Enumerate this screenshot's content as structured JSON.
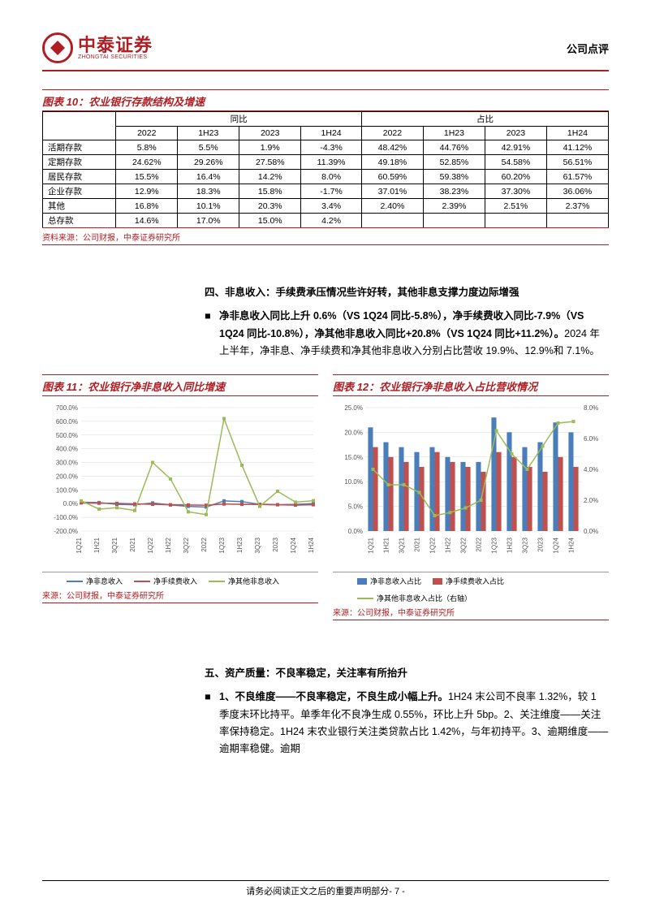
{
  "header": {
    "logo_cn": "中泰证券",
    "logo_en": "ZHONGTAI SECURITIES",
    "doc_type": "公司点评"
  },
  "table10": {
    "title": "图表 10：农业银行存款结构及增速",
    "group_headers": [
      "同比",
      "占比"
    ],
    "col_headers": [
      "2022",
      "1H23",
      "2023",
      "1H24",
      "2022",
      "1H23",
      "2023",
      "1H24"
    ],
    "rows": [
      {
        "label": "活期存款",
        "cells": [
          "5.8%",
          "5.5%",
          "1.9%",
          "-4.3%",
          "48.42%",
          "44.76%",
          "42.91%",
          "41.12%"
        ]
      },
      {
        "label": "定期存款",
        "cells": [
          "24.62%",
          "29.26%",
          "27.58%",
          "11.39%",
          "49.18%",
          "52.85%",
          "54.58%",
          "56.51%"
        ]
      },
      {
        "label": "居民存款",
        "cells": [
          "15.5%",
          "16.4%",
          "14.2%",
          "8.0%",
          "60.59%",
          "59.38%",
          "60.20%",
          "61.57%"
        ]
      },
      {
        "label": "企业存款",
        "cells": [
          "12.9%",
          "18.3%",
          "15.8%",
          "-1.7%",
          "37.01%",
          "38.23%",
          "37.30%",
          "36.06%"
        ]
      },
      {
        "label": "其他",
        "cells": [
          "16.8%",
          "10.1%",
          "20.3%",
          "3.4%",
          "2.40%",
          "2.39%",
          "2.51%",
          "2.37%"
        ]
      },
      {
        "label": "总存款",
        "cells": [
          "14.6%",
          "17.0%",
          "15.0%",
          "4.2%",
          "",
          "",
          "",
          ""
        ]
      }
    ],
    "source": "资料来源：公司财报，中泰证券研究所"
  },
  "section4": {
    "title": "四、非息收入：手续费承压情况些许好转，其他非息支撑力度边际增强",
    "bullet_bold": "净非息收入同比上升 0.6%（VS 1Q24 同比-5.8%），净手续费收入同比-7.9%（VS 1Q24 同比-10.8%），净其他非息收入同比+20.8%（VS 1Q24 同比+11.2%）。",
    "bullet_rest": "2024 年上半年，净非息、净手续费和净其他非息收入分别占比营收 19.9%、12.9%和 7.1%。"
  },
  "chart11": {
    "title": "图表 11：农业银行净非息收入同比增速",
    "type": "line",
    "ylim": [
      -200,
      700
    ],
    "ytick_step": 100,
    "yticks": [
      "-200.0%",
      "-100.0%",
      "0.0%",
      "100.0%",
      "200.0%",
      "300.0%",
      "400.0%",
      "500.0%",
      "600.0%",
      "700.0%"
    ],
    "categories": [
      "1Q21",
      "1H21",
      "3Q21",
      "2021",
      "1Q22",
      "1H22",
      "3Q22",
      "2022",
      "1Q23",
      "1H23",
      "3Q23",
      "2023",
      "1Q24",
      "1H24"
    ],
    "series": [
      {
        "name": "净非息收入",
        "color": "#4a7ebb",
        "values": [
          10,
          8,
          -5,
          -8,
          5,
          -10,
          -20,
          -25,
          20,
          15,
          -5,
          -8,
          -6,
          1
        ]
      },
      {
        "name": "净手续费收入",
        "color": "#c0504d",
        "values": [
          5,
          3,
          2,
          -2,
          -5,
          -8,
          -10,
          -12,
          -3,
          -5,
          -6,
          -8,
          -11,
          -8
        ]
      },
      {
        "name": "净其他非息收入",
        "color": "#9bbb59",
        "values": [
          20,
          -40,
          -30,
          -50,
          300,
          180,
          -60,
          -80,
          620,
          280,
          -20,
          90,
          11,
          21
        ]
      }
    ],
    "background_color": "#ffffff",
    "grid_color": "#d9d9d9",
    "source": "来源：公司财报，中泰证券研究所"
  },
  "chart12": {
    "title": "图表 12：农业银行净非息收入占比营收情况",
    "type": "bar+line",
    "ylim_left": [
      0,
      25
    ],
    "ytick_left": [
      "0.0%",
      "5.0%",
      "10.0%",
      "15.0%",
      "20.0%",
      "25.0%"
    ],
    "ylim_right": [
      0,
      8
    ],
    "ytick_right": [
      "0.0%",
      "2.0%",
      "4.0%",
      "6.0%",
      "8.0%"
    ],
    "categories": [
      "1Q21",
      "1H21",
      "3Q21",
      "2021",
      "1Q22",
      "1H22",
      "3Q22",
      "2022",
      "1Q23",
      "1H23",
      "3Q23",
      "2023",
      "1Q24",
      "1H24"
    ],
    "series_bars": [
      {
        "name": "净非息收入占比",
        "color": "#4a7ebb",
        "values": [
          21,
          18,
          17,
          16,
          17,
          15,
          14,
          14,
          23,
          20,
          17,
          18,
          22,
          20
        ]
      },
      {
        "name": "净手续费收入占比",
        "color": "#c0504d",
        "values": [
          17,
          15,
          14,
          13,
          16,
          14,
          13,
          12,
          16,
          15,
          13,
          12,
          15,
          13
        ]
      }
    ],
    "series_line": {
      "name": "净其他非息收入占比（右轴）",
      "color": "#9bbb59",
      "values": [
        4.0,
        3.0,
        3.0,
        2.5,
        1.0,
        1.2,
        1.5,
        2.0,
        6.5,
        5.0,
        4.0,
        5.5,
        7.0,
        7.1
      ]
    },
    "background_color": "#ffffff",
    "grid_color": "#d9d9d9",
    "source": "来源：公司财报，中泰证券研究所"
  },
  "section5": {
    "title": "五、资产质量：不良率稳定，关注率有所抬升",
    "bullet_bold": "1、不良维度——不良率稳定，不良生成小幅上升。",
    "bullet_rest": "1H24 末公司不良率 1.32%，较 1 季度末环比持平。单季年化不良净生成 0.55%，环比上升 5bp。2、关注维度——关注率保持稳定。1H24 末农业银行关注类贷款占比 1.42%，与年初持平。3、逾期维度——逾期率稳健。逾期"
  },
  "footer": {
    "text": "请务必阅读正文之后的重要声明部分",
    "page": "- 7 -"
  },
  "colors": {
    "brand": "#b01e23",
    "blue": "#4a7ebb",
    "red": "#c0504d",
    "green": "#9bbb59",
    "grid": "#d9d9d9"
  }
}
